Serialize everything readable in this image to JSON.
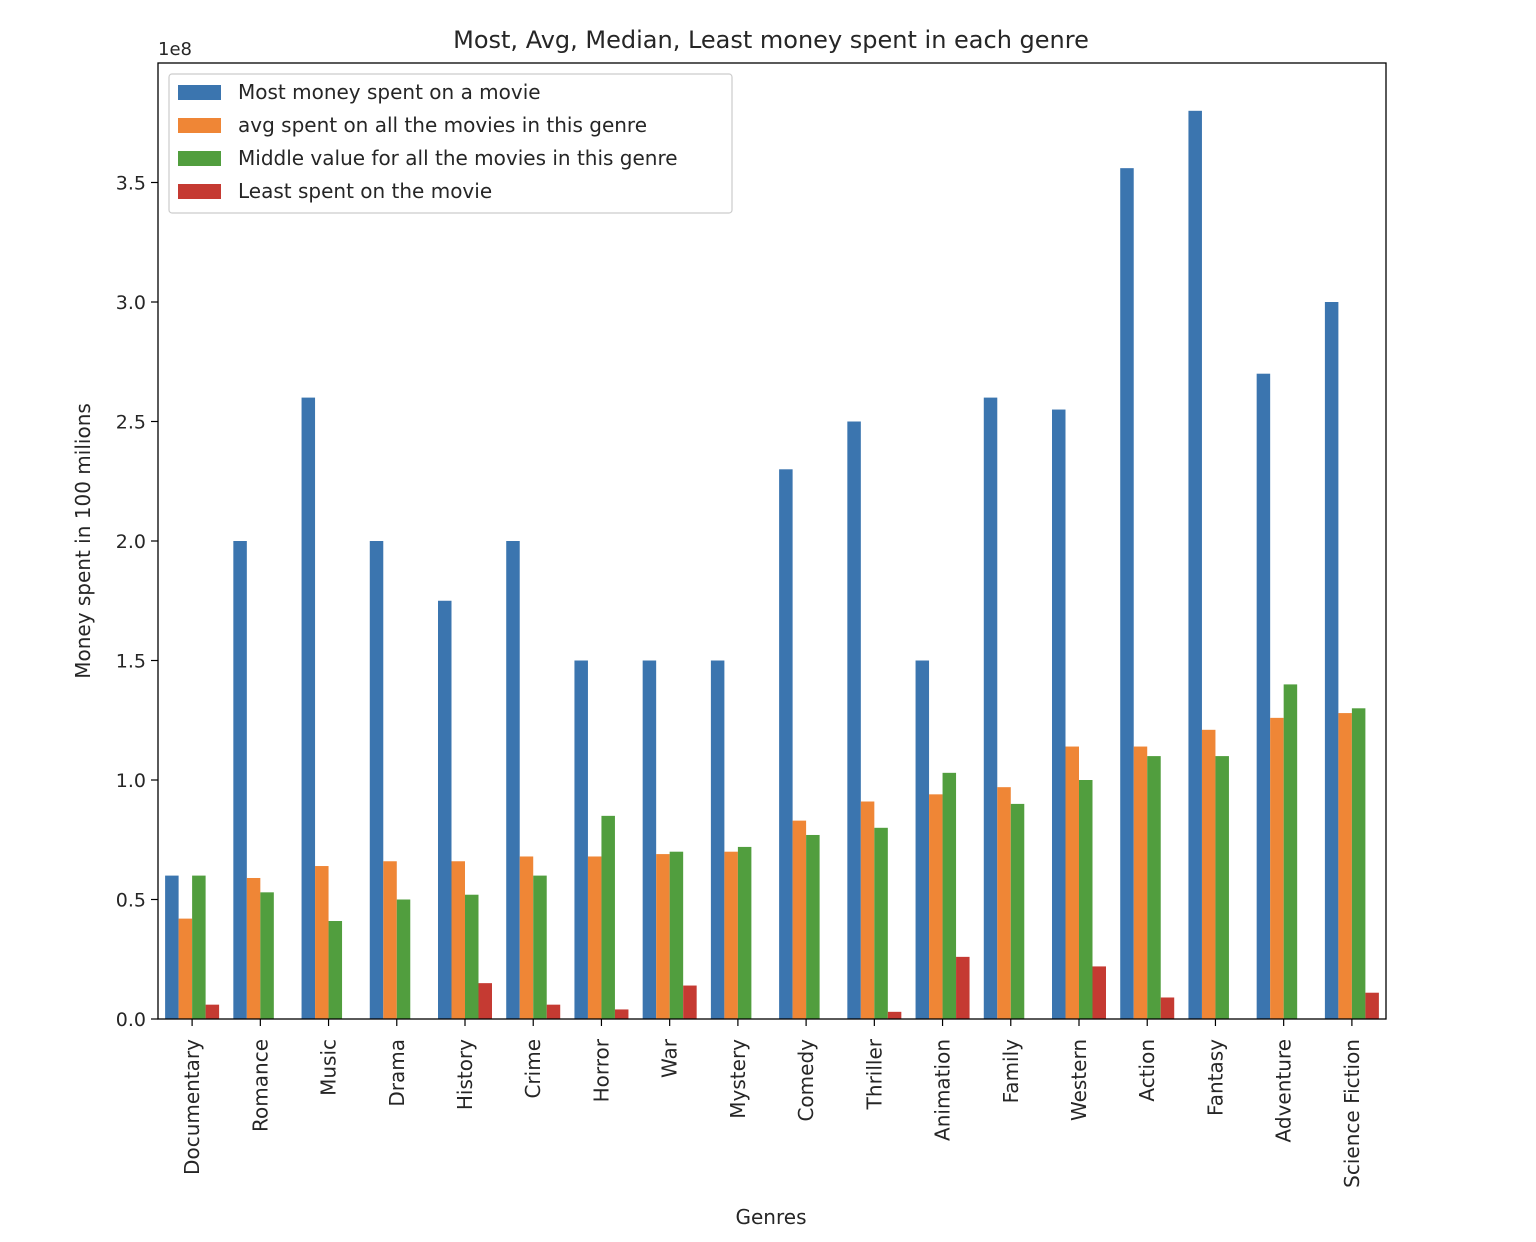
{
  "chart_data": {
    "type": "bar",
    "title": "Most, Avg, Median, Least money spent in each genre",
    "xlabel": "Genres",
    "ylabel": "Money spent in 100 milions",
    "offset_label": "1e8",
    "ylim": [
      0,
      4.0
    ],
    "yticks": [
      "0.0",
      "0.5",
      "1.0",
      "1.5",
      "2.0",
      "2.5",
      "3.0",
      "3.5"
    ],
    "grid": false,
    "legend_position": "top-left",
    "categories": [
      "Documentary",
      "Romance",
      "Music",
      "Drama",
      "History",
      "Crime",
      "Horror",
      "War",
      "Mystery",
      "Comedy",
      "Thriller",
      "Animation",
      "Family",
      "Western",
      "Action",
      "Fantasy",
      "Adventure",
      "Science Fiction"
    ],
    "series": [
      {
        "name": "Most money spent on a movie",
        "color": "#3b75af",
        "values": [
          0.6,
          2.0,
          2.6,
          2.0,
          1.75,
          2.0,
          1.5,
          1.5,
          1.5,
          2.3,
          2.5,
          1.5,
          2.6,
          2.55,
          3.56,
          3.8,
          2.7,
          3.0
        ]
      },
      {
        "name": "avg spent on all the movies in this genre",
        "color": "#ef8636",
        "values": [
          0.42,
          0.59,
          0.64,
          0.66,
          0.66,
          0.68,
          0.68,
          0.69,
          0.7,
          0.83,
          0.91,
          0.94,
          0.97,
          1.14,
          1.14,
          1.21,
          1.26,
          1.28
        ]
      },
      {
        "name": "Middle value for all the movies in this genre",
        "color": "#519e3e",
        "values": [
          0.6,
          0.53,
          0.41,
          0.5,
          0.52,
          0.6,
          0.85,
          0.7,
          0.72,
          0.77,
          0.8,
          1.03,
          0.9,
          1.0,
          1.1,
          1.1,
          1.4,
          1.3
        ]
      },
      {
        "name": "Least spent on the movie",
        "color": "#c53a32",
        "values": [
          0.06,
          0.0,
          0.0,
          0.0,
          0.15,
          0.06,
          0.04,
          0.14,
          0.0,
          0.0,
          0.03,
          0.26,
          0.0,
          0.22,
          0.09,
          0.0,
          0.0,
          0.11
        ]
      }
    ]
  }
}
